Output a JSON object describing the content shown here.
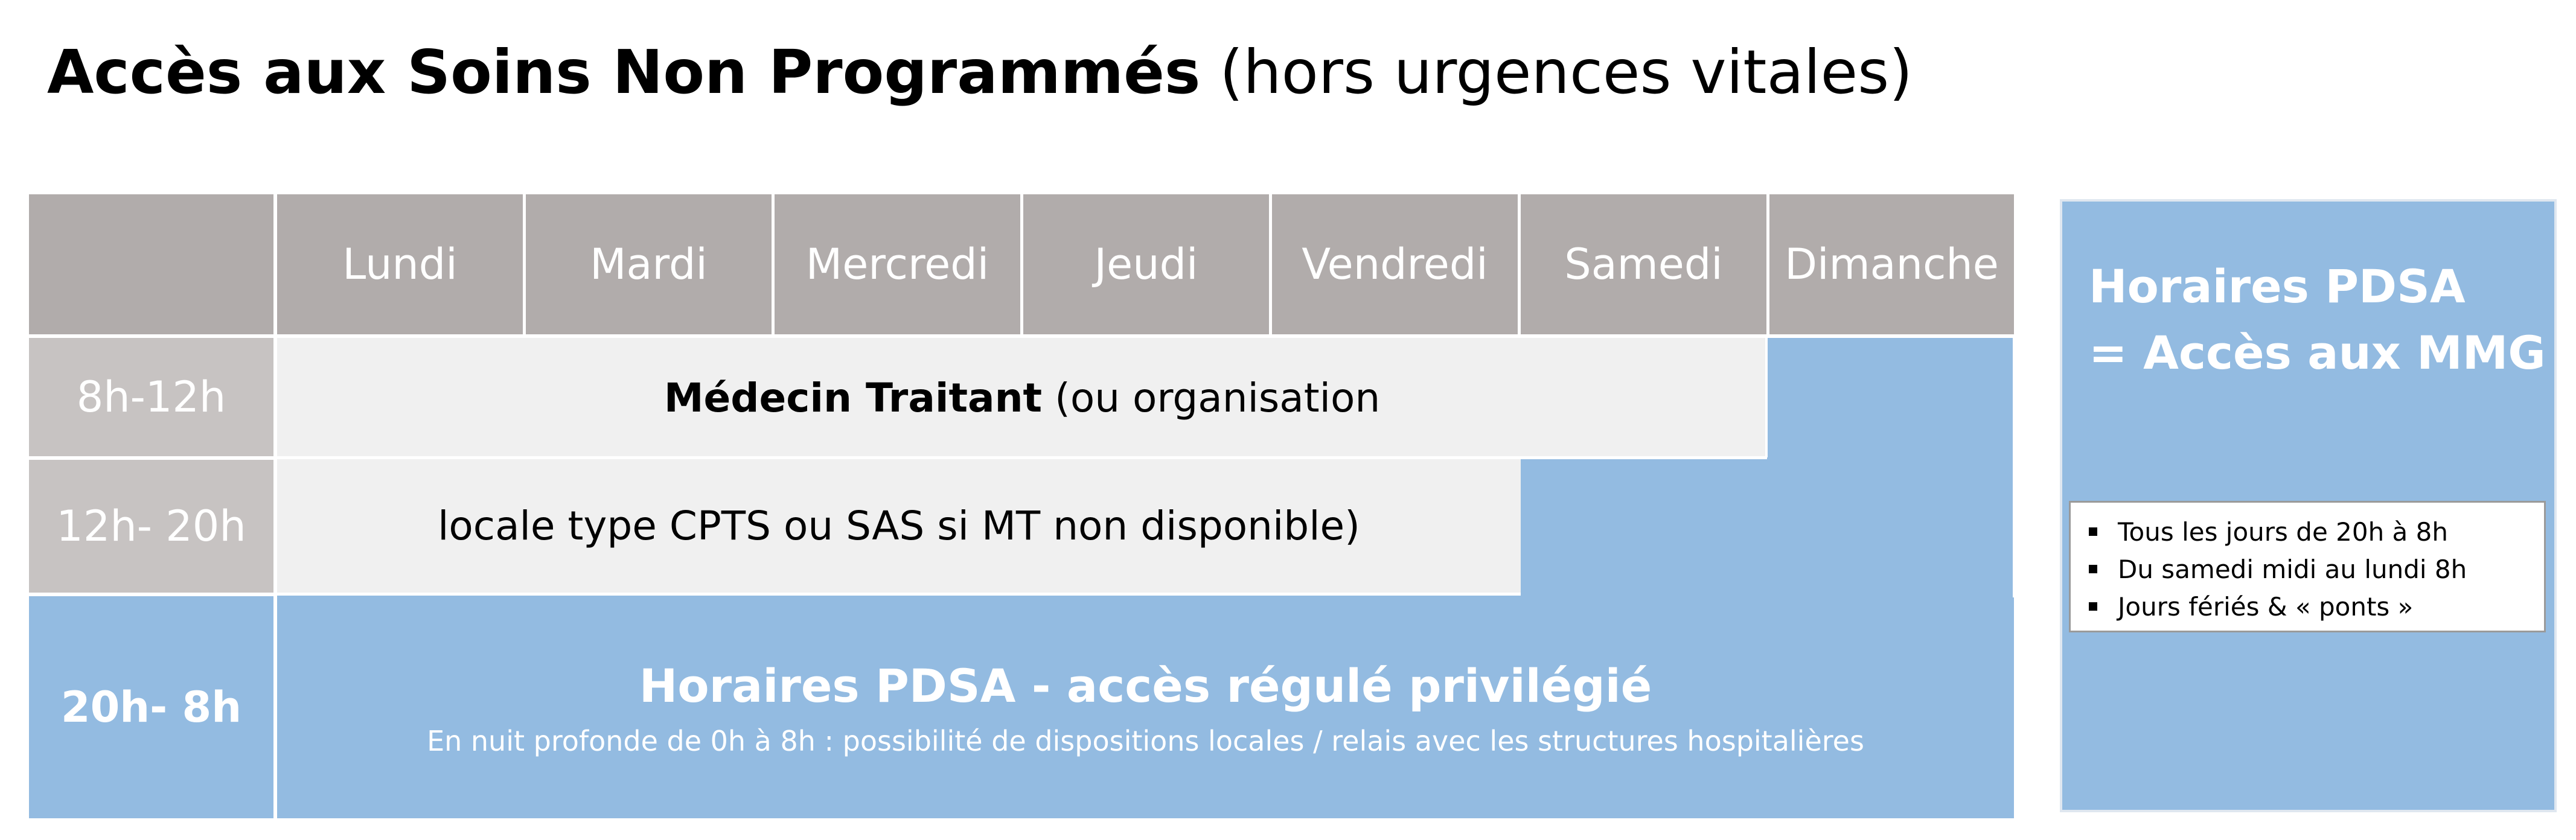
{
  "title": {
    "bold": "Accès aux Soins Non Programmés",
    "normal": "(hors urgences vitales)"
  },
  "days": [
    "Lundi",
    "Mardi",
    "Mercredi",
    "Jeudi",
    "Vendredi",
    "Samedi",
    "Dimanche"
  ],
  "time_slots": [
    "8h-12h",
    "12h- 20h",
    "20h- 8h"
  ],
  "medecin": {
    "bold": "Médecin Traitant",
    "line1_rest": "(ou organisation",
    "line2": "locale type CPTS ou SAS si MT non disponible)"
  },
  "pdsa_band": {
    "title": "Horaires PDSA - accès régulé privilégié",
    "subtitle": "En nuit profonde de 0h à 8h : possibilité de dispositions locales / relais avec les structures hospitalières"
  },
  "side": {
    "title_line1": "Horaires PDSA",
    "title_line2": "= Accès aux MMG",
    "bullets": [
      "Tous les jours de 20h à 8h",
      "Du samedi midi au lundi 8h",
      "Jours fériés & « ponts »"
    ]
  },
  "colors": {
    "header_gray": "#b1acab",
    "row_label_gray": "#c7c3c2",
    "pdsa_blue": "#93bbe1",
    "light_gray": "#f0f0f0"
  }
}
